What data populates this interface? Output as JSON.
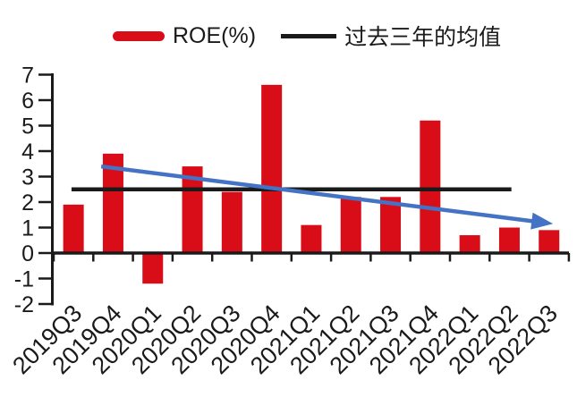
{
  "chart_data": {
    "type": "bar",
    "title": "",
    "xlabel": "",
    "ylabel": "",
    "categories": [
      "2019Q3",
      "2019Q4",
      "2020Q1",
      "2020Q2",
      "2020Q3",
      "2020Q4",
      "2021Q1",
      "2021Q2",
      "2021Q3",
      "2021Q4",
      "2022Q1",
      "2022Q2",
      "2022Q3"
    ],
    "series": [
      {
        "name": "ROE(%)",
        "type": "bar",
        "color": "#d90d18",
        "values": [
          1.9,
          3.9,
          -1.2,
          3.4,
          2.4,
          6.6,
          1.1,
          2.2,
          2.2,
          5.2,
          0.7,
          1.0,
          0.9
        ]
      },
      {
        "name": "过去三年的均值",
        "type": "line",
        "color": "#1a1a1a",
        "value": 2.5,
        "span_category_index": [
          -0.05,
          11.05
        ]
      }
    ],
    "trend_arrow": {
      "color": "#4472c4",
      "start": {
        "category_index": 0.7,
        "value": 3.4
      },
      "end": {
        "category_index": 12.1,
        "value": 1.15
      }
    },
    "ylim": [
      -2,
      7
    ],
    "y_ticks": [
      7,
      6,
      5,
      4,
      3,
      2,
      1,
      0,
      -1,
      -2
    ],
    "grid": false,
    "legend_position": "top",
    "legend": [
      {
        "label": "ROE(%)",
        "swatch": "bar",
        "color": "#d90d18"
      },
      {
        "label": "过去三年的均值",
        "swatch": "line",
        "color": "#1a1a1a"
      }
    ],
    "axis_color": "#1a1a1a",
    "background": "#ffffff"
  }
}
